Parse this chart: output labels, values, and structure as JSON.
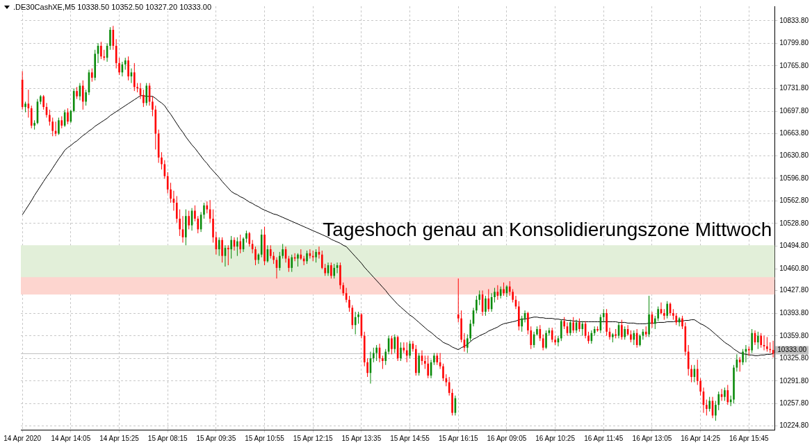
{
  "chart_data": {
    "type": "candlestick",
    "title": ".DE30CashXE,M5  10338.50 10352.50 10327.20 10333.00",
    "categories": [
      "14 Apr 2020",
      null,
      null,
      null,
      null,
      null,
      null,
      null,
      null,
      null,
      null,
      null,
      null,
      null,
      null,
      null,
      "14 Apr 14:05",
      null,
      null,
      null,
      null,
      null,
      null,
      null,
      null,
      null,
      null,
      null,
      null,
      null,
      null,
      null,
      "14 Apr 15:25",
      null,
      null,
      null,
      null,
      null,
      null,
      null,
      null,
      null,
      null,
      null,
      null,
      null,
      null,
      null,
      "15 Apr 08:15",
      null,
      null,
      null,
      null,
      null,
      null,
      null,
      null,
      null,
      null,
      null,
      null,
      null,
      null,
      null,
      "15 Apr 09:35",
      null,
      null,
      null,
      null,
      null,
      null,
      null,
      null,
      null,
      null,
      null,
      null,
      null,
      null,
      null,
      "15 Apr 10:55",
      null,
      null,
      null,
      null,
      null,
      null,
      null,
      null,
      null,
      null,
      null,
      null,
      null,
      null,
      null,
      "15 Apr 12:15",
      null,
      null,
      null,
      null,
      null,
      null,
      null,
      null,
      null,
      null,
      null,
      null,
      null,
      null,
      null,
      "15 Apr 13:35",
      null,
      null,
      null,
      null,
      null,
      null,
      null,
      null,
      null,
      null,
      null,
      null,
      null,
      null,
      null,
      "15 Apr 14:55",
      null,
      null,
      null,
      null,
      null,
      null,
      null,
      null,
      null,
      null,
      null,
      null,
      null,
      null,
      null,
      "15 Apr 16:15",
      null,
      null,
      null,
      null,
      null,
      null,
      null,
      null,
      null,
      null,
      null,
      null,
      null,
      null,
      null,
      "16 Apr 09:05",
      null,
      null,
      null,
      null,
      null,
      null,
      null,
      null,
      null,
      null,
      null,
      null,
      null,
      null,
      null,
      "16 Apr 10:25",
      null,
      null,
      null,
      null,
      null,
      null,
      null,
      null,
      null,
      null,
      null,
      null,
      null,
      null,
      null,
      "16 Apr 11:45",
      null,
      null,
      null,
      null,
      null,
      null,
      null,
      null,
      null,
      null,
      null,
      null,
      null,
      null,
      null,
      "16 Apr 13:05",
      null,
      null,
      null,
      null,
      null,
      null,
      null,
      null,
      null,
      null,
      null,
      null,
      null,
      null,
      null,
      "16 Apr 14:25",
      null,
      null,
      null,
      null,
      null,
      null,
      null,
      null,
      null,
      null,
      null,
      null,
      null,
      null,
      null,
      "16 Apr 15:45",
      null,
      null,
      null,
      null,
      null,
      null,
      null,
      null
    ],
    "ohlc": [
      [
        10745,
        10758,
        10700,
        10704
      ],
      [
        10704,
        10712,
        10696,
        10709
      ],
      [
        10709,
        10730,
        10688,
        10702
      ],
      [
        10702,
        10706,
        10672,
        10676
      ],
      [
        10676,
        10684,
        10670,
        10680
      ],
      [
        10680,
        10716,
        10678,
        10712
      ],
      [
        10712,
        10722,
        10708,
        10720
      ],
      [
        10720,
        10722,
        10700,
        10704
      ],
      [
        10704,
        10710,
        10688,
        10692
      ],
      [
        10692,
        10700,
        10676,
        10682
      ],
      [
        10682,
        10688,
        10660,
        10668
      ],
      [
        10668,
        10682,
        10660,
        10664
      ],
      [
        10664,
        10688,
        10662,
        10684
      ],
      [
        10684,
        10690,
        10672,
        10676
      ],
      [
        10676,
        10700,
        10674,
        10696
      ],
      [
        10696,
        10702,
        10678,
        10682
      ],
      [
        10682,
        10700,
        10680,
        10698
      ],
      [
        10698,
        10732,
        10696,
        10728
      ],
      [
        10728,
        10734,
        10716,
        10720
      ],
      [
        10720,
        10740,
        10714,
        10736
      ],
      [
        10736,
        10744,
        10700,
        10712
      ],
      [
        10712,
        10730,
        10706,
        10726
      ],
      [
        10726,
        10760,
        10722,
        10756
      ],
      [
        10756,
        10762,
        10742,
        10748
      ],
      [
        10748,
        10790,
        10744,
        10784
      ],
      [
        10784,
        10800,
        10770,
        10796
      ],
      [
        10796,
        10802,
        10776,
        10780
      ],
      [
        10780,
        10790,
        10774,
        10778
      ],
      [
        10778,
        10800,
        10772,
        10796
      ],
      [
        10796,
        10824,
        10790,
        10820
      ],
      [
        10820,
        10826,
        10790,
        10796
      ],
      [
        10796,
        10806,
        10762,
        10770
      ],
      [
        10770,
        10778,
        10752,
        10756
      ],
      [
        10756,
        10772,
        10750,
        10768
      ],
      [
        10768,
        10778,
        10760,
        10774
      ],
      [
        10774,
        10780,
        10744,
        10750
      ],
      [
        10750,
        10762,
        10740,
        10756
      ],
      [
        10756,
        10770,
        10728,
        10734
      ],
      [
        10734,
        10740,
        10726,
        10732
      ],
      [
        10732,
        10740,
        10716,
        10722
      ],
      [
        10722,
        10730,
        10704,
        10710
      ],
      [
        10710,
        10740,
        10706,
        10736
      ],
      [
        10736,
        10740,
        10706,
        10712
      ],
      [
        10712,
        10720,
        10690,
        10700
      ],
      [
        10700,
        10706,
        10640,
        10664
      ],
      [
        10664,
        10670,
        10620,
        10628
      ],
      [
        10628,
        10636,
        10610,
        10618
      ],
      [
        10618,
        10624,
        10596,
        10600
      ],
      [
        10600,
        10606,
        10574,
        10580
      ],
      [
        10580,
        10590,
        10560,
        10566
      ],
      [
        10566,
        10578,
        10548,
        10560
      ],
      [
        10560,
        10570,
        10530,
        10536
      ],
      [
        10536,
        10550,
        10510,
        10520
      ],
      [
        10520,
        10540,
        10500,
        10508
      ],
      [
        10508,
        10550,
        10496,
        10540
      ],
      [
        10540,
        10548,
        10520,
        10526
      ],
      [
        10526,
        10552,
        10518,
        10548
      ],
      [
        10548,
        10556,
        10532,
        10536
      ],
      [
        10536,
        10540,
        10514,
        10520
      ],
      [
        10520,
        10546,
        10516,
        10542
      ],
      [
        10542,
        10560,
        10536,
        10556
      ],
      [
        10556,
        10562,
        10544,
        10550
      ],
      [
        10550,
        10564,
        10530,
        10536
      ],
      [
        10536,
        10550,
        10500,
        10508
      ],
      [
        10508,
        10516,
        10482,
        10490
      ],
      [
        10490,
        10508,
        10480,
        10504
      ],
      [
        10504,
        10508,
        10470,
        10480
      ],
      [
        10480,
        10496,
        10464,
        10492
      ],
      [
        10492,
        10496,
        10466,
        10490
      ],
      [
        10490,
        10510,
        10476,
        10504
      ],
      [
        10504,
        10508,
        10488,
        10494
      ],
      [
        10494,
        10508,
        10480,
        10502
      ],
      [
        10502,
        10512,
        10484,
        10490
      ],
      [
        10490,
        10508,
        10486,
        10506
      ],
      [
        10506,
        10518,
        10500,
        10514
      ],
      [
        10514,
        10516,
        10494,
        10498
      ],
      [
        10498,
        10504,
        10484,
        10490
      ],
      [
        10490,
        10494,
        10466,
        10474
      ],
      [
        10474,
        10484,
        10468,
        10482
      ],
      [
        10482,
        10520,
        10478,
        10512
      ],
      [
        10512,
        10524,
        10466,
        10472
      ],
      [
        10472,
        10496,
        10470,
        10490
      ],
      [
        10490,
        10496,
        10476,
        10480
      ],
      [
        10480,
        10486,
        10468,
        10474
      ],
      [
        10474,
        10478,
        10446,
        10462
      ],
      [
        10462,
        10486,
        10458,
        10480
      ],
      [
        10480,
        10498,
        10476,
        10490
      ],
      [
        10490,
        10494,
        10470,
        10476
      ],
      [
        10476,
        10480,
        10456,
        10462
      ],
      [
        10462,
        10482,
        10456,
        10478
      ],
      [
        10478,
        10484,
        10472,
        10476
      ],
      [
        10476,
        10484,
        10464,
        10482
      ],
      [
        10482,
        10490,
        10474,
        10476
      ],
      [
        10476,
        10480,
        10466,
        10472
      ],
      [
        10472,
        10488,
        10468,
        10484
      ],
      [
        10484,
        10490,
        10476,
        10480
      ],
      [
        10480,
        10488,
        10472,
        10478
      ],
      [
        10478,
        10490,
        10470,
        10486
      ],
      [
        10486,
        10494,
        10476,
        10482
      ],
      [
        10482,
        10488,
        10460,
        10462
      ],
      [
        10462,
        10468,
        10450,
        10454
      ],
      [
        10454,
        10470,
        10450,
        10466
      ],
      [
        10466,
        10470,
        10446,
        10450
      ],
      [
        10450,
        10468,
        10446,
        10462
      ],
      [
        10462,
        10470,
        10454,
        10466
      ],
      [
        10466,
        10470,
        10430,
        10436
      ],
      [
        10436,
        10440,
        10420,
        10424
      ],
      [
        10424,
        10432,
        10410,
        10414
      ],
      [
        10414,
        10420,
        10396,
        10402
      ],
      [
        10402,
        10406,
        10370,
        10376
      ],
      [
        10376,
        10396,
        10362,
        10388
      ],
      [
        10388,
        10396,
        10378,
        10392
      ],
      [
        10392,
        10394,
        10356,
        10360
      ],
      [
        10360,
        10366,
        10314,
        10320
      ],
      [
        10320,
        10326,
        10298,
        10304
      ],
      [
        10304,
        10336,
        10288,
        10326
      ],
      [
        10326,
        10342,
        10320,
        10334
      ],
      [
        10334,
        10346,
        10322,
        10342
      ],
      [
        10342,
        10348,
        10320,
        10326
      ],
      [
        10326,
        10330,
        10310,
        10322
      ],
      [
        10322,
        10340,
        10316,
        10336
      ],
      [
        10336,
        10360,
        10332,
        10356
      ],
      [
        10356,
        10360,
        10332,
        10340
      ],
      [
        10340,
        10362,
        10334,
        10358
      ],
      [
        10358,
        10360,
        10322,
        10326
      ],
      [
        10326,
        10350,
        10322,
        10342
      ],
      [
        10342,
        10350,
        10334,
        10338
      ],
      [
        10338,
        10350,
        10320,
        10330
      ],
      [
        10330,
        10352,
        10326,
        10348
      ],
      [
        10348,
        10352,
        10336,
        10340
      ],
      [
        10340,
        10346,
        10300,
        10304
      ],
      [
        10304,
        10334,
        10300,
        10330
      ],
      [
        10330,
        10338,
        10316,
        10322
      ],
      [
        10322,
        10330,
        10310,
        10318
      ],
      [
        10318,
        10330,
        10296,
        10300
      ],
      [
        10300,
        10324,
        10296,
        10320
      ],
      [
        10320,
        10334,
        10316,
        10330
      ],
      [
        10330,
        10334,
        10316,
        10320
      ],
      [
        10320,
        10334,
        10310,
        10314
      ],
      [
        10314,
        10318,
        10292,
        10296
      ],
      [
        10296,
        10302,
        10284,
        10290
      ],
      [
        10290,
        10298,
        10270,
        10274
      ],
      [
        10274,
        10280,
        10240,
        10244
      ],
      [
        10244,
        10270,
        10240,
        10266
      ],
      [
        10392,
        10446,
        10380,
        10386
      ],
      [
        10386,
        10398,
        10350,
        10354
      ],
      [
        10354,
        10364,
        10336,
        10342
      ],
      [
        10342,
        10362,
        10334,
        10356
      ],
      [
        10356,
        10384,
        10352,
        10378
      ],
      [
        10378,
        10402,
        10374,
        10398
      ],
      [
        10398,
        10420,
        10394,
        10414
      ],
      [
        10414,
        10428,
        10406,
        10422
      ],
      [
        10422,
        10428,
        10390,
        10396
      ],
      [
        10396,
        10420,
        10390,
        10416
      ],
      [
        10416,
        10430,
        10396,
        10400
      ],
      [
        10400,
        10424,
        10396,
        10418
      ],
      [
        10418,
        10432,
        10410,
        10426
      ],
      [
        10426,
        10436,
        10414,
        10420
      ],
      [
        10420,
        10434,
        10416,
        10430
      ],
      [
        10430,
        10440,
        10420,
        10424
      ],
      [
        10424,
        10436,
        10418,
        10434
      ],
      [
        10434,
        10442,
        10420,
        10426
      ],
      [
        10426,
        10430,
        10410,
        10414
      ],
      [
        10414,
        10420,
        10400,
        10404
      ],
      [
        10404,
        10412,
        10368,
        10374
      ],
      [
        10374,
        10390,
        10366,
        10386
      ],
      [
        10386,
        10398,
        10380,
        10394
      ],
      [
        10394,
        10396,
        10362,
        10368
      ],
      [
        10368,
        10374,
        10340,
        10346
      ],
      [
        10346,
        10366,
        10342,
        10362
      ],
      [
        10362,
        10374,
        10360,
        10370
      ],
      [
        10370,
        10376,
        10352,
        10356
      ],
      [
        10356,
        10362,
        10338,
        10342
      ],
      [
        10342,
        10368,
        10340,
        10364
      ],
      [
        10364,
        10372,
        10360,
        10368
      ],
      [
        10368,
        10372,
        10350,
        10354
      ],
      [
        10354,
        10360,
        10346,
        10350
      ],
      [
        10350,
        10360,
        10344,
        10356
      ],
      [
        10356,
        10384,
        10352,
        10382
      ],
      [
        10382,
        10388,
        10370,
        10374
      ],
      [
        10374,
        10380,
        10360,
        10364
      ],
      [
        10364,
        10384,
        10360,
        10380
      ],
      [
        10380,
        10388,
        10364,
        10368
      ],
      [
        10368,
        10384,
        10364,
        10380
      ],
      [
        10380,
        10386,
        10366,
        10370
      ],
      [
        10370,
        10382,
        10360,
        10378
      ],
      [
        10378,
        10382,
        10356,
        10360
      ],
      [
        10360,
        10366,
        10348,
        10352
      ],
      [
        10352,
        10368,
        10348,
        10364
      ],
      [
        10364,
        10374,
        10360,
        10370
      ],
      [
        10370,
        10374,
        10366,
        10368
      ],
      [
        10368,
        10392,
        10364,
        10388
      ],
      [
        10388,
        10400,
        10380,
        10394
      ],
      [
        10394,
        10400,
        10360,
        10366
      ],
      [
        10366,
        10372,
        10354,
        10358
      ],
      [
        10358,
        10364,
        10350,
        10362
      ],
      [
        10362,
        10370,
        10356,
        10360
      ],
      [
        10360,
        10380,
        10356,
        10376
      ],
      [
        10376,
        10384,
        10354,
        10358
      ],
      [
        10358,
        10374,
        10354,
        10370
      ],
      [
        10370,
        10376,
        10360,
        10362
      ],
      [
        10362,
        10368,
        10350,
        10354
      ],
      [
        10354,
        10368,
        10346,
        10364
      ],
      [
        10364,
        10370,
        10342,
        10346
      ],
      [
        10346,
        10362,
        10344,
        10360
      ],
      [
        10360,
        10370,
        10354,
        10366
      ],
      [
        10366,
        10374,
        10358,
        10362
      ],
      [
        10362,
        10420,
        10358,
        10392
      ],
      [
        10392,
        10396,
        10372,
        10378
      ],
      [
        10378,
        10390,
        10370,
        10386
      ],
      [
        10386,
        10404,
        10382,
        10400
      ],
      [
        10400,
        10410,
        10392,
        10394
      ],
      [
        10394,
        10400,
        10384,
        10390
      ],
      [
        10390,
        10412,
        10386,
        10408
      ],
      [
        10408,
        10410,
        10390,
        10394
      ],
      [
        10394,
        10400,
        10384,
        10390
      ],
      [
        10390,
        10394,
        10376,
        10380
      ],
      [
        10380,
        10388,
        10374,
        10386
      ],
      [
        10386,
        10390,
        10370,
        10374
      ],
      [
        10374,
        10380,
        10330,
        10336
      ],
      [
        10336,
        10346,
        10300,
        10310
      ],
      [
        10310,
        10316,
        10290,
        10298
      ],
      [
        10298,
        10316,
        10290,
        10310
      ],
      [
        10310,
        10324,
        10286,
        10292
      ],
      [
        10292,
        10296,
        10270,
        10276
      ],
      [
        10276,
        10282,
        10244,
        10256
      ],
      [
        10256,
        10264,
        10240,
        10250
      ],
      [
        10250,
        10268,
        10246,
        10262
      ],
      [
        10262,
        10268,
        10236,
        10240
      ],
      [
        10240,
        10262,
        10232,
        10256
      ],
      [
        10256,
        10276,
        10248,
        10272
      ],
      [
        10272,
        10280,
        10262,
        10268
      ],
      [
        10268,
        10282,
        10262,
        10278
      ],
      [
        10278,
        10286,
        10256,
        10260
      ],
      [
        10260,
        10270,
        10254,
        10264
      ],
      [
        10264,
        10316,
        10258,
        10312
      ],
      [
        10312,
        10332,
        10306,
        10324
      ],
      [
        10324,
        10328,
        10306,
        10320
      ],
      [
        10320,
        10340,
        10316,
        10336
      ],
      [
        10336,
        10346,
        10320,
        10340
      ],
      [
        10340,
        10344,
        10330,
        10338
      ],
      [
        10338,
        10370,
        10334,
        10364
      ],
      [
        10364,
        10368,
        10346,
        10350
      ],
      [
        10350,
        10366,
        10340,
        10360
      ],
      [
        10360,
        10364,
        10342,
        10346
      ],
      [
        10346,
        10360,
        10338,
        10344
      ],
      [
        10344,
        10358,
        10336,
        10340
      ],
      [
        10340,
        10350,
        10334,
        10338.5
      ],
      [
        10338.5,
        10352.5,
        10327.2,
        10333
      ]
    ],
    "series": [
      {
        "type": "line",
        "color": "#000000",
        "values": [
          10542,
          10549,
          10556,
          10563,
          10571,
          10578,
          10585,
          10592,
          10599,
          10605,
          10612,
          10619,
          10626,
          10632,
          10639,
          10643,
          10646,
          10650,
          10653,
          10657,
          10661,
          10664,
          10668,
          10671,
          10675,
          10678,
          10681,
          10684,
          10687,
          10691,
          10694,
          10697,
          10700,
          10703,
          10706,
          10709,
          10712,
          10715,
          10718,
          10721,
          10721,
          10720,
          10720,
          10720,
          10717,
          10713,
          10710,
          10706,
          10699,
          10693,
          10686,
          10679,
          10672,
          10666,
          10659,
          10653,
          10647,
          10642,
          10636,
          10630,
          10624,
          10619,
          10613,
          10608,
          10603,
          10598,
          10592,
          10587,
          10582,
          10577,
          10574,
          10572,
          10569,
          10567,
          10564,
          10561,
          10559,
          10556,
          10554,
          10551,
          10549,
          10547,
          10545,
          10543,
          10542,
          10540,
          10538,
          10536,
          10534,
          10532,
          10530,
          10528,
          10526,
          10524,
          10522,
          10520,
          10518,
          10516,
          10514,
          10512,
          10510,
          10508,
          10505,
          10503,
          10501,
          10499,
          10496,
          10494,
          10489,
          10484,
          10479,
          10474,
          10469,
          10463,
          10458,
          10453,
          10448,
          10443,
          10438,
          10433,
          10428,
          10422,
          10417,
          10412,
          10407,
          10403,
          10399,
          10395,
          10391,
          10388,
          10384,
          10380,
          10376,
          10372,
          10368,
          10365,
          10361,
          10357,
          10354,
          10350,
          10348,
          10346,
          10343,
          10341,
          10339,
          10342,
          10344,
          10347,
          10351,
          10355,
          10357,
          10360,
          10362,
          10364,
          10367,
          10369,
          10371,
          10373,
          10376,
          10378,
          10379,
          10380,
          10381,
          10382,
          10384,
          10385,
          10385,
          10386,
          10387,
          10388,
          10388,
          10387,
          10387,
          10386,
          10386,
          10386,
          10385,
          10385,
          10384,
          10384,
          10383,
          10383,
          10382,
          10382,
          10381,
          10381,
          10381,
          10381,
          10381,
          10381,
          10381,
          10381,
          10381,
          10381,
          10381,
          10381,
          10381,
          10380,
          10380,
          10380,
          10379,
          10379,
          10379,
          10378,
          10378,
          10378,
          10378,
          10379,
          10379,
          10379,
          10380,
          10380,
          10380,
          10381,
          10381,
          10381,
          10382,
          10382,
          10382,
          10383,
          10383,
          10384,
          10384,
          10381,
          10378,
          10376,
          10373,
          10370,
          10366,
          10362,
          10358,
          10354,
          10350,
          10347,
          10344,
          10340,
          10337,
          10334,
          10333,
          10332,
          10331,
          10331,
          10330,
          10330,
          10331,
          10331,
          10332,
          10332,
          10333
        ]
      }
    ],
    "ylim": [
      10218.6,
      10855.5
    ],
    "yticks": [
      {
        "value": 10224.8,
        "label": "10224.80"
      },
      {
        "value": 10257.8,
        "label": "10257.80"
      },
      {
        "value": 10291.8,
        "label": "10291.80"
      },
      {
        "value": 10325.8,
        "label": "10325.80"
      },
      {
        "value": 10359.8,
        "label": "10359.80"
      },
      {
        "value": 10393.8,
        "label": "10393.80"
      },
      {
        "value": 10427.8,
        "label": "10427.80"
      },
      {
        "value": 10460.8,
        "label": "10460.80"
      },
      {
        "value": 10494.8,
        "label": "10494.80"
      },
      {
        "value": 10528.8,
        "label": "10528.80"
      },
      {
        "value": 10562.8,
        "label": "10562.80"
      },
      {
        "value": 10596.8,
        "label": "10596.80"
      },
      {
        "value": 10630.8,
        "label": "10630.80"
      },
      {
        "value": 10663.8,
        "label": "10663.80"
      },
      {
        "value": 10697.8,
        "label": "10697.80"
      },
      {
        "value": 10731.8,
        "label": "10731.80"
      },
      {
        "value": 10765.8,
        "label": "10765.80"
      },
      {
        "value": 10799.8,
        "label": "10799.80"
      },
      {
        "value": 10833.8,
        "label": "10833.80"
      }
    ],
    "ref_lines": [
      {
        "axis": "y",
        "value": 10333,
        "label": "10333.00",
        "color": "#c0c0c0"
      }
    ],
    "bands": [
      {
        "axis": "y",
        "from": 10444,
        "to": 10496,
        "color": "#e2efd9"
      },
      {
        "axis": "y",
        "from": 10422,
        "to": 10448,
        "color": "#fdd5cf"
      }
    ],
    "annotations": [
      "Tageshoch genau an Konsolidierungszone Mittwoch"
    ],
    "grid": true,
    "legend": false
  }
}
